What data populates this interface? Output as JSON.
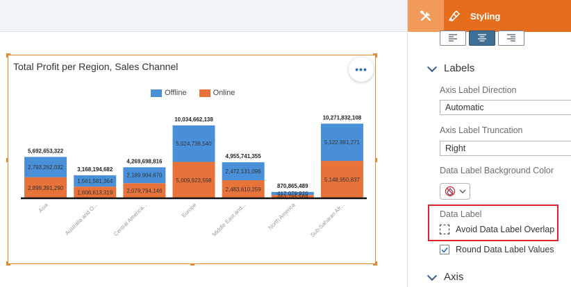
{
  "chart": {
    "title": "Total Profit per Region, Sales Channel",
    "more_label": "•••",
    "legend": [
      {
        "name": "Offline",
        "color": "#4a90d9"
      },
      {
        "name": "Online",
        "color": "#e8733a"
      }
    ]
  },
  "chart_data": {
    "type": "bar",
    "stacked": true,
    "title": "Total Profit per Region, Sales Channel",
    "categories": [
      "Asia",
      "Australia and O...",
      "Central America...",
      "Europe",
      "Middle East and...",
      "North America",
      "Sub-Saharan Afr..."
    ],
    "series": [
      {
        "name": "Online",
        "color": "#e8733a",
        "values": [
          2899391290,
          1606613319,
          2079794146,
          5009923598,
          2483610259,
          453785569,
          5148950837
        ],
        "labels": [
          "2,899,391,290",
          "1,606,613,319",
          "2,079,794,146",
          "5,009,923,598",
          "2,483,610,259",
          "453,785,569",
          "5,148,950,837"
        ]
      },
      {
        "name": "Offline",
        "color": "#4a90d9",
        "values": [
          2793262032,
          1561581364,
          2189904670,
          5024738540,
          2472131096,
          417079920,
          5122881271
        ],
        "labels": [
          "2,793,262,032",
          "1,561,581,364",
          "2,189,904,670",
          "5,024,738,540",
          "2,472,131,096",
          "417,079,920",
          "5,122,881,271"
        ]
      }
    ],
    "totals": [
      "5,692,653,322",
      "3,168,194,682",
      "4,269,698,816",
      "10,034,662,138",
      "4,955,741,355",
      "870,865,489",
      "10,271,832,108"
    ],
    "total_values": [
      5692653322,
      3168194682,
      4269698816,
      10034662138,
      4955741355,
      870865489,
      10271832108
    ],
    "ylim": [
      0,
      10500000000
    ],
    "legend_position": "top",
    "grid": false
  },
  "panel": {
    "styling_tab": "Styling",
    "labels_section": "Labels",
    "axis_label_direction_label": "Axis Label Direction",
    "axis_label_direction_value": "Automatic",
    "axis_label_truncation_label": "Axis Label Truncation",
    "axis_label_truncation_value": "Right",
    "data_label_bg_label": "Data Label Background Color",
    "data_label_heading": "Data Label",
    "avoid_overlap_label": "Avoid Data Label Overlap",
    "avoid_overlap_checked": false,
    "round_values_label": "Round Data Label Values",
    "round_values_checked": true,
    "axis_section": "Axis"
  },
  "colors": {
    "accent": "#e56d1b",
    "accent_light": "#f19a5a",
    "highlight_box": "#d9232d",
    "active_align": "#3f6e94"
  },
  "icons": [
    "tools-icon",
    "brush-icon",
    "align-left-icon",
    "align-center-icon",
    "align-right-icon",
    "chevron-down-icon",
    "no-fill-icon",
    "checkmark-icon"
  ]
}
